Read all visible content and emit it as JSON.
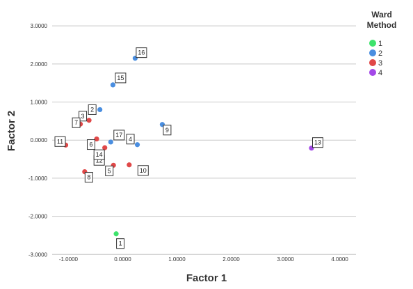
{
  "chart_data": {
    "type": "scatter",
    "xlabel": "Factor 1",
    "ylabel": "Factor 2",
    "xlim": [
      -1.3,
      4.3
    ],
    "ylim": [
      -3.05,
      3.35
    ],
    "x_ticks": [
      -1.0,
      0.0,
      1.0,
      2.0,
      3.0,
      4.0
    ],
    "x_tick_labels": [
      "-1.0000",
      "0.0000",
      "1.0000",
      "2.0000",
      "3.0000",
      "4.0000"
    ],
    "y_ticks": [
      3.0,
      2.0,
      1.0,
      0.0,
      -1.0,
      -2.0,
      -3.0
    ],
    "y_tick_labels": [
      "3.0000",
      "2.0000",
      "1.0000",
      "0.0000",
      "-1.0000",
      "-2.0000",
      "-3.0000"
    ],
    "grid": "horizontal",
    "legend": {
      "title": "Ward Method",
      "placement": "top-right",
      "entries": [
        {
          "label": "1",
          "color": "#3ee36c"
        },
        {
          "label": "2",
          "color": "#4a8ee0"
        },
        {
          "label": "3",
          "color": "#e04848"
        },
        {
          "label": "4",
          "color": "#a348e8"
        }
      ]
    },
    "points": [
      {
        "label": "1",
        "x": -0.12,
        "y": -2.46,
        "group": "1"
      },
      {
        "label": "2",
        "x": -0.42,
        "y": 0.8,
        "group": "2"
      },
      {
        "label": "4",
        "x": 0.27,
        "y": -0.12,
        "group": "2"
      },
      {
        "label": "9",
        "x": 0.73,
        "y": 0.41,
        "group": "2"
      },
      {
        "label": "15",
        "x": -0.18,
        "y": 1.45,
        "group": "2"
      },
      {
        "label": "16",
        "x": 0.23,
        "y": 2.15,
        "group": "2"
      },
      {
        "label": "17",
        "x": -0.22,
        "y": -0.05,
        "group": "2"
      },
      {
        "label": "3",
        "x": -0.62,
        "y": 0.52,
        "group": "3"
      },
      {
        "label": "5",
        "x": -0.17,
        "y": -0.66,
        "group": "3"
      },
      {
        "label": "6",
        "x": -0.48,
        "y": 0.03,
        "group": "3"
      },
      {
        "label": "7",
        "x": -0.78,
        "y": 0.42,
        "group": "3"
      },
      {
        "label": "8",
        "x": -0.7,
        "y": -0.83,
        "group": "3"
      },
      {
        "label": "10",
        "x": 0.12,
        "y": -0.65,
        "group": "3"
      },
      {
        "label": "11",
        "x": -1.05,
        "y": -0.13,
        "group": "3"
      },
      {
        "label": "12",
        "x": -0.42,
        "y": -0.33,
        "group": "3"
      },
      {
        "label": "14",
        "x": -0.33,
        "y": -0.2,
        "group": "3"
      },
      {
        "label": "13",
        "x": 3.48,
        "y": -0.21,
        "group": "4"
      }
    ]
  }
}
